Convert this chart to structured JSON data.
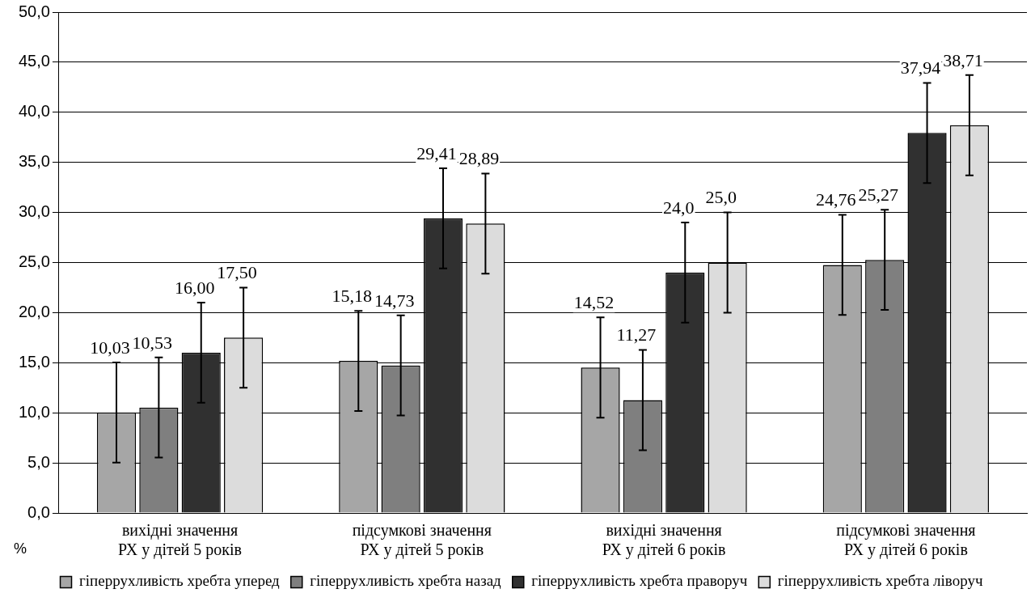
{
  "chart_data": {
    "type": "bar",
    "ylabel": "%",
    "categories": [
      "вихідні значення РХ у дітей 5 років",
      "підсумкові значення РХ у дітей 5 років",
      "вихідні значення РХ у дітей 6 років",
      "підсумкові значення РХ у дітей 6 років"
    ],
    "series": [
      {
        "name": "гіперрухливість хребта уперед",
        "color": "#a6a6a6",
        "values": [
          10.03,
          15.18,
          14.52,
          24.76
        ],
        "errors": [
          5,
          5,
          5,
          5
        ],
        "value_labels": [
          "10,03",
          "15,18",
          "14,52",
          "24,76"
        ]
      },
      {
        "name": "гіперрухливість хребта назад",
        "color": "#7f7f7f",
        "values": [
          10.53,
          14.73,
          11.27,
          25.27
        ],
        "errors": [
          5,
          5,
          5,
          5
        ],
        "value_labels": [
          "10,53",
          "14,73",
          "11,27",
          "25,27"
        ]
      },
      {
        "name": "гіперрухливість хребта праворуч",
        "color": "#303030",
        "values": [
          16.0,
          29.41,
          24.0,
          37.94
        ],
        "errors": [
          5,
          5,
          5,
          5
        ],
        "value_labels": [
          "16,00",
          "29,41",
          "24,0",
          "37,94"
        ]
      },
      {
        "name": "гіперрухливість хребта ліворуч",
        "color": "#dcdcdc",
        "values": [
          17.5,
          28.89,
          25.0,
          38.71
        ],
        "errors": [
          5,
          5,
          5,
          5
        ],
        "value_labels": [
          "17,50",
          "28,89",
          "25,0",
          "38,71"
        ]
      }
    ],
    "ylim": [
      0,
      50
    ],
    "yticks": [
      {
        "value": 0,
        "label": "0,0"
      },
      {
        "value": 5,
        "label": "5,0"
      },
      {
        "value": 10,
        "label": "10,0"
      },
      {
        "value": 15,
        "label": "15,0"
      },
      {
        "value": 20,
        "label": "20,0"
      },
      {
        "value": 25,
        "label": "25,0"
      },
      {
        "value": 30,
        "label": "30,0"
      },
      {
        "value": 35,
        "label": "35,0"
      },
      {
        "value": 40,
        "label": "40,0"
      },
      {
        "value": 45,
        "label": "45,0"
      },
      {
        "value": 50,
        "label": "50,0"
      }
    ],
    "grid": "y",
    "legend": "bottom"
  }
}
